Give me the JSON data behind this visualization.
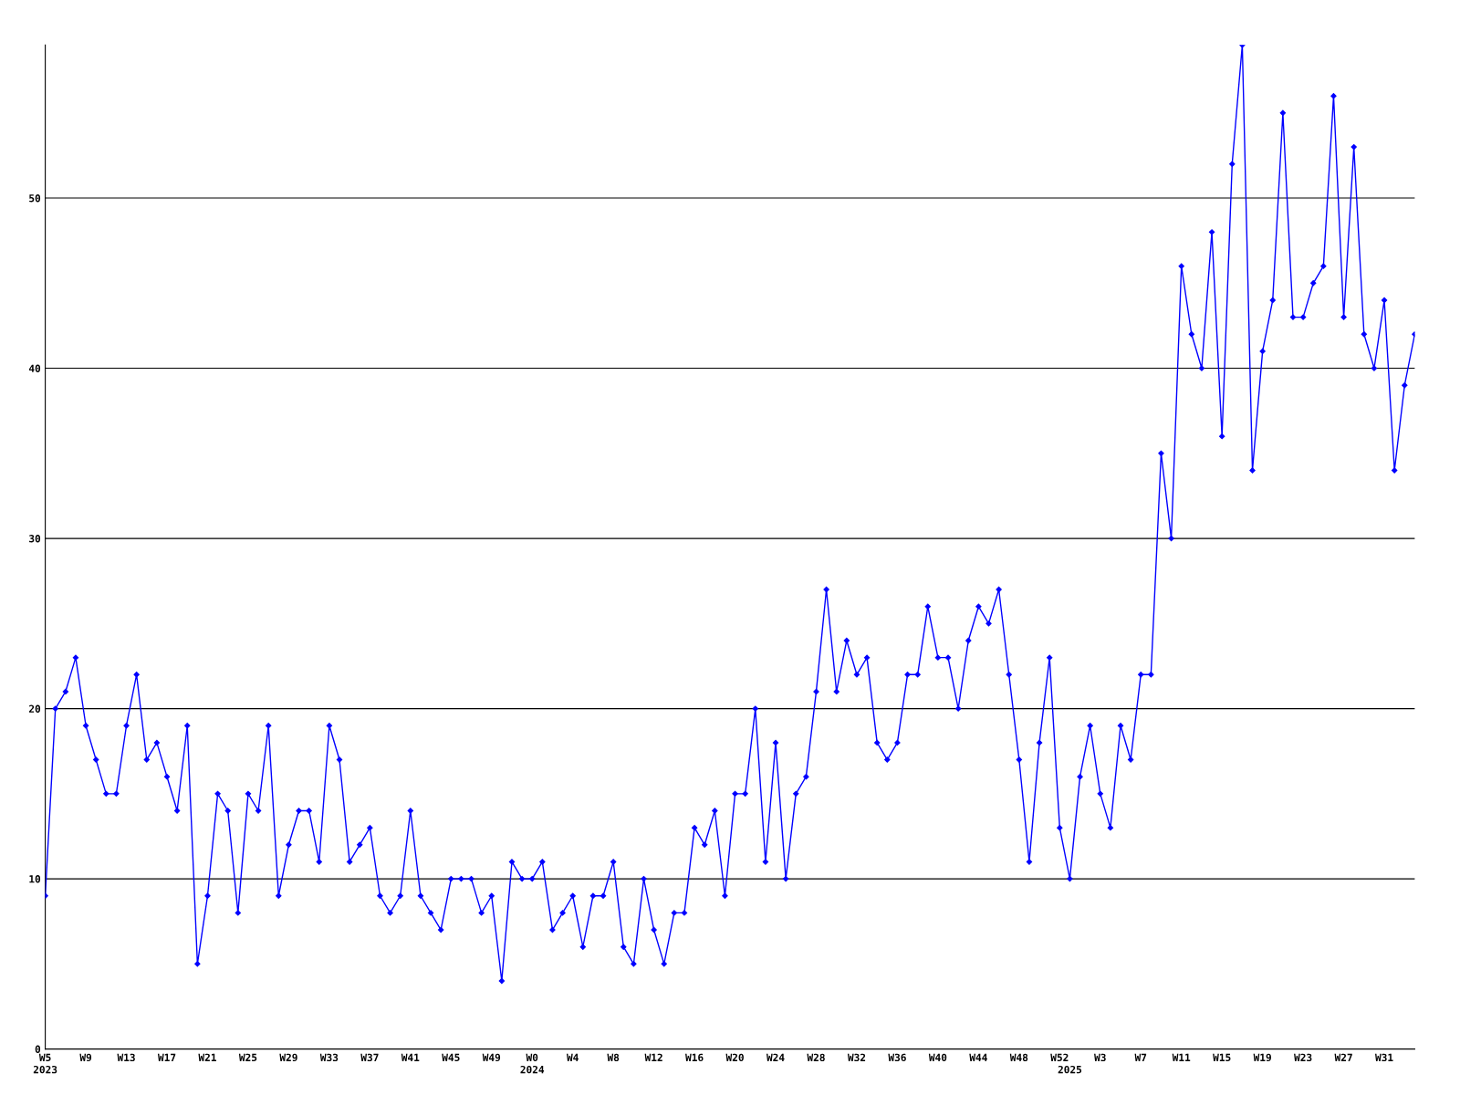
{
  "chart_data": {
    "type": "line",
    "categories": [
      "W5\n2023",
      null,
      null,
      null,
      "W9",
      null,
      null,
      null,
      "W13",
      null,
      null,
      null,
      "W17",
      null,
      null,
      null,
      "W21",
      null,
      null,
      null,
      "W25",
      null,
      null,
      null,
      "W29",
      null,
      null,
      null,
      "W33",
      null,
      null,
      null,
      "W37",
      null,
      null,
      null,
      "W41",
      null,
      null,
      null,
      "W45",
      null,
      null,
      null,
      "W49",
      null,
      null,
      null,
      "W0\n2024",
      null,
      null,
      null,
      "W4",
      null,
      null,
      null,
      "W8",
      null,
      null,
      null,
      "W12",
      null,
      null,
      null,
      "W16",
      null,
      null,
      null,
      "W20",
      null,
      null,
      null,
      "W24",
      null,
      null,
      null,
      "W28",
      null,
      null,
      null,
      "W32",
      null,
      null,
      null,
      "W36",
      null,
      null,
      null,
      "W40",
      null,
      null,
      null,
      "W44",
      null,
      null,
      null,
      "W48",
      null,
      null,
      null,
      "W52",
      "\n2025",
      null,
      null,
      "W3",
      null,
      null,
      null,
      "W7",
      null,
      null,
      null,
      "W11",
      null,
      null,
      null,
      "W15",
      null,
      null,
      null,
      "W19",
      null,
      null,
      null,
      "W23",
      null,
      null,
      null,
      "W27",
      null,
      null,
      null,
      "W31",
      null,
      null,
      null
    ],
    "series": [
      {
        "color": "#0000ff",
        "values": [
          9,
          20,
          21,
          23,
          19,
          17,
          15,
          15,
          19,
          22,
          17,
          18,
          16,
          14,
          19,
          5,
          9,
          15,
          14,
          8,
          15,
          14,
          19,
          9,
          12,
          14,
          14,
          11,
          19,
          17,
          11,
          12,
          13,
          9,
          8,
          9,
          14,
          9,
          8,
          7,
          10,
          10,
          10,
          8,
          9,
          4,
          11,
          10,
          10,
          11,
          7,
          8,
          9,
          6,
          9,
          9,
          11,
          6,
          5,
          10,
          7,
          5,
          8,
          8,
          13,
          12,
          14,
          9,
          15,
          15,
          20,
          11,
          18,
          10,
          15,
          16,
          21,
          27,
          21,
          24,
          22,
          23,
          18,
          17,
          18,
          22,
          22,
          26,
          23,
          23,
          20,
          24,
          26,
          25,
          27,
          22,
          17,
          11,
          18,
          23,
          13,
          10,
          16,
          19,
          15,
          13,
          19,
          17,
          22,
          22,
          35,
          30,
          46,
          42,
          40,
          48,
          36,
          52,
          59,
          34,
          41,
          44,
          55,
          43,
          43,
          45,
          46,
          56,
          43,
          53,
          42,
          40,
          44,
          34,
          39,
          42
        ]
      }
    ],
    "ylim": [
      0,
      59
    ],
    "yticks": [
      0,
      10,
      20,
      30,
      40,
      50
    ],
    "grid": "y",
    "marker": "diamond",
    "line_style": "solid",
    "legend": false
  }
}
